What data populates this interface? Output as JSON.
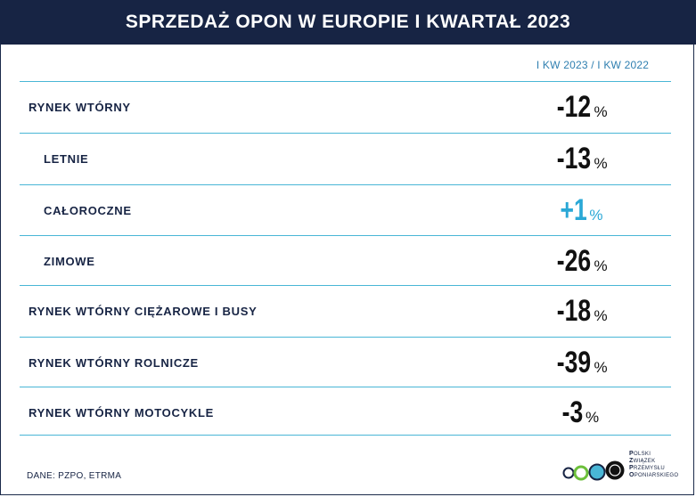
{
  "header": {
    "title": "SPRZEDAŻ OPON W EUROPIE I KWARTAŁ 2023"
  },
  "table": {
    "column_header": "I KW 2023 / I KW 2022",
    "rows": [
      {
        "label": "RYNEK WTÓRNY",
        "value": "-12",
        "unit": "%",
        "indent": false,
        "color": "#111111"
      },
      {
        "label": "LETNIE",
        "value": "-13",
        "unit": "%",
        "indent": true,
        "color": "#111111"
      },
      {
        "label": "CAŁOROCZNE",
        "value": "+1",
        "unit": "%",
        "indent": true,
        "color": "#2aa8d6"
      },
      {
        "label": "ZIMOWE",
        "value": "-26",
        "unit": "%",
        "indent": true,
        "color": "#111111"
      },
      {
        "label": "RYNEK WTÓRNY CIĘŻAROWE I BUSY",
        "value": "-18",
        "unit": "%",
        "indent": false,
        "color": "#111111"
      },
      {
        "label": "RYNEK WTÓRNY ROLNICZE",
        "value": "-39",
        "unit": "%",
        "indent": false,
        "color": "#111111"
      },
      {
        "label": "RYNEK WTÓRNY MOTOCYKLE",
        "value": "-3",
        "unit": "%",
        "indent": false,
        "color": "#111111"
      }
    ]
  },
  "footer": {
    "source": "DANE: PZPO, ETRMA",
    "logo_lines": [
      "POLSKI",
      "ZWIĄZEK",
      "PRZEMYSŁU",
      "OPONIARSKIEGO"
    ],
    "logo_colors": [
      "#172444",
      "#6cbf3a",
      "#49b6d6",
      "#111111"
    ]
  },
  "colors": {
    "header_bg": "#172444",
    "accent_line": "#49b6d6",
    "positive": "#2aa8d6",
    "text_dark": "#172444"
  }
}
